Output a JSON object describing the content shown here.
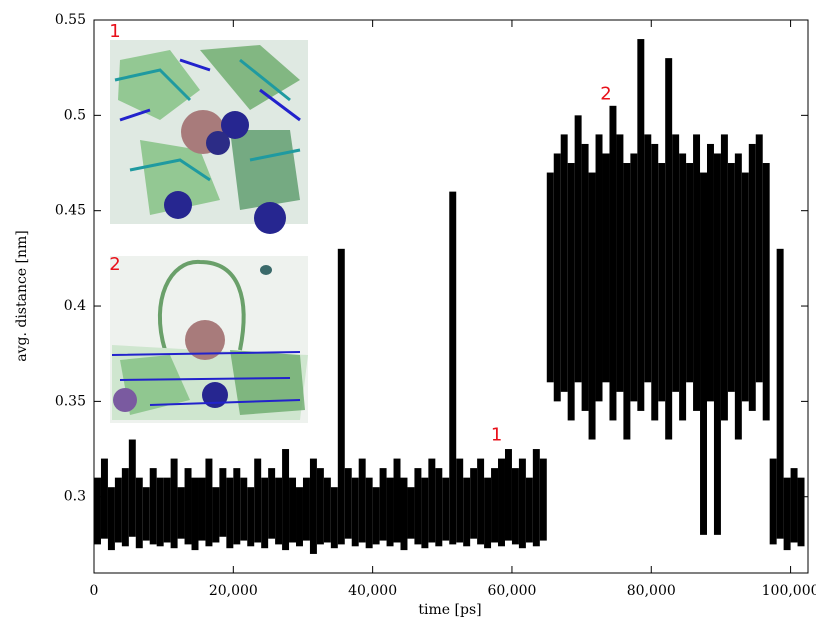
{
  "chart_data": {
    "type": "range",
    "xlabel": "time [ps]",
    "ylabel": "avg. distance [nm]",
    "color": "#000000",
    "x": [
      0,
      1000,
      2000,
      3000,
      4000,
      5000,
      6000,
      7000,
      8000,
      9000,
      10000,
      11000,
      12000,
      13000,
      14000,
      15000,
      16000,
      17000,
      18000,
      19000,
      20000,
      21000,
      22000,
      23000,
      24000,
      25000,
      26000,
      27000,
      28000,
      29000,
      30000,
      31000,
      32000,
      33000,
      34000,
      35000,
      36000,
      37000,
      38000,
      39000,
      40000,
      41000,
      42000,
      43000,
      44000,
      45000,
      46000,
      47000,
      48000,
      49000,
      50000,
      51000,
      52000,
      53000,
      54000,
      55000,
      56000,
      57000,
      58000,
      59000,
      60000,
      61000,
      62000,
      63000,
      64000,
      65000,
      66000,
      67000,
      68000,
      69000,
      70000,
      71000,
      72000,
      73000,
      74000,
      75000,
      76000,
      77000,
      78000,
      79000,
      80000,
      81000,
      82000,
      83000,
      84000,
      85000,
      86000,
      87000,
      88000,
      89000,
      90000,
      91000,
      92000,
      93000,
      94000,
      95000,
      96000,
      97000,
      98000,
      99000,
      100000,
      101000
    ],
    "low": [
      0.275,
      0.278,
      0.272,
      0.276,
      0.274,
      0.279,
      0.273,
      0.277,
      0.275,
      0.274,
      0.276,
      0.273,
      0.278,
      0.275,
      0.272,
      0.277,
      0.274,
      0.276,
      0.279,
      0.273,
      0.275,
      0.277,
      0.274,
      0.276,
      0.273,
      0.278,
      0.275,
      0.272,
      0.276,
      0.274,
      0.277,
      0.27,
      0.275,
      0.276,
      0.273,
      0.275,
      0.278,
      0.274,
      0.276,
      0.273,
      0.275,
      0.277,
      0.274,
      0.276,
      0.272,
      0.278,
      0.275,
      0.273,
      0.276,
      0.274,
      0.277,
      0.275,
      0.276,
      0.274,
      0.278,
      0.275,
      0.273,
      0.276,
      0.274,
      0.277,
      0.275,
      0.273,
      0.276,
      0.274,
      0.277,
      0.36,
      0.35,
      0.355,
      0.34,
      0.36,
      0.345,
      0.33,
      0.35,
      0.36,
      0.34,
      0.355,
      0.33,
      0.35,
      0.345,
      0.36,
      0.34,
      0.35,
      0.33,
      0.355,
      0.34,
      0.36,
      0.345,
      0.28,
      0.35,
      0.28,
      0.34,
      0.355,
      0.33,
      0.35,
      0.345,
      0.36,
      0.34,
      0.275,
      0.278,
      0.272,
      0.276,
      0.274
    ],
    "high": [
      0.31,
      0.32,
      0.305,
      0.31,
      0.315,
      0.33,
      0.31,
      0.305,
      0.315,
      0.31,
      0.31,
      0.32,
      0.305,
      0.315,
      0.31,
      0.31,
      0.32,
      0.305,
      0.315,
      0.31,
      0.315,
      0.31,
      0.305,
      0.32,
      0.31,
      0.315,
      0.31,
      0.325,
      0.31,
      0.305,
      0.31,
      0.32,
      0.315,
      0.31,
      0.305,
      0.43,
      0.315,
      0.31,
      0.32,
      0.31,
      0.305,
      0.315,
      0.31,
      0.32,
      0.31,
      0.305,
      0.315,
      0.31,
      0.32,
      0.315,
      0.31,
      0.46,
      0.32,
      0.31,
      0.315,
      0.32,
      0.31,
      0.315,
      0.32,
      0.325,
      0.315,
      0.32,
      0.31,
      0.325,
      0.32,
      0.47,
      0.48,
      0.49,
      0.475,
      0.5,
      0.485,
      0.47,
      0.49,
      0.48,
      0.505,
      0.49,
      0.475,
      0.48,
      0.54,
      0.49,
      0.485,
      0.475,
      0.53,
      0.49,
      0.48,
      0.475,
      0.49,
      0.47,
      0.485,
      0.48,
      0.49,
      0.475,
      0.48,
      0.47,
      0.485,
      0.49,
      0.475,
      0.32,
      0.43,
      0.31,
      0.315,
      0.31
    ],
    "xlim": [
      0,
      102500
    ],
    "ylim": [
      0.26,
      0.55
    ],
    "xticks": [
      0,
      {
        "value": 20000,
        "label": "20,000"
      },
      {
        "value": 40000,
        "label": "40,000"
      },
      {
        "value": 60000,
        "label": "60,000"
      },
      {
        "value": 80000,
        "label": "80,000"
      },
      {
        "value": 100000,
        "label": "100,000"
      }
    ],
    "yticks": [
      0.3,
      0.35,
      0.4,
      0.45,
      0.5,
      0.55
    ],
    "annotations": [
      "1",
      "2"
    ],
    "inset_labels": [
      "1",
      "2"
    ]
  }
}
